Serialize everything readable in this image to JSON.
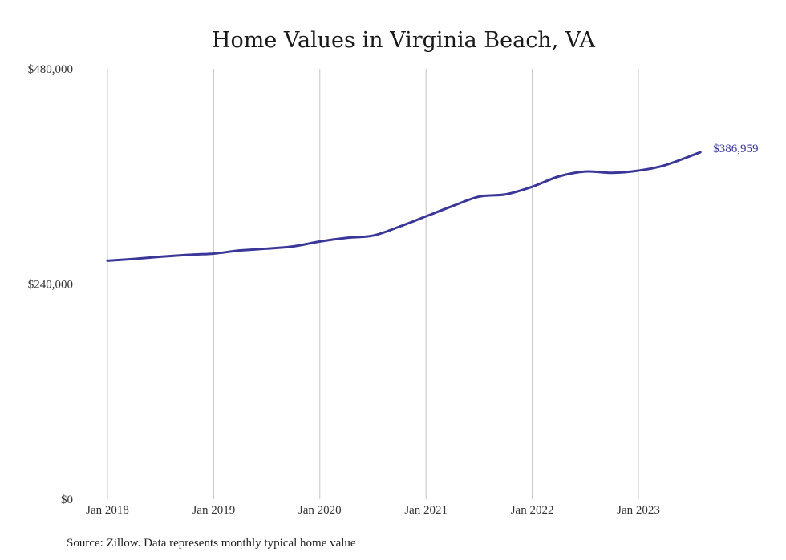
{
  "chart_data": {
    "type": "line",
    "title": "Home Values in Virginia Beach, VA",
    "xlabel": "",
    "ylabel": "",
    "x_tick_labels": [
      "Jan 2018",
      "Jan 2019",
      "Jan 2020",
      "Jan 2021",
      "Jan 2022",
      "Jan 2023"
    ],
    "y_tick_labels": [
      "$0",
      "$240,000",
      "$480,000"
    ],
    "y_ticks": [
      0,
      240000,
      480000
    ],
    "ylim": [
      0,
      480000
    ],
    "xlim": [
      "2018-01",
      "2023-08"
    ],
    "grid": "vertical",
    "series": [
      {
        "color": "#3b3799",
        "end_label": "$386,959",
        "points": [
          {
            "x": "2018-01",
            "y": 266000
          },
          {
            "x": "2018-04",
            "y": 268000
          },
          {
            "x": "2018-07",
            "y": 270500
          },
          {
            "x": "2018-10",
            "y": 272500
          },
          {
            "x": "2019-01",
            "y": 274000
          },
          {
            "x": "2019-04",
            "y": 277500
          },
          {
            "x": "2019-07",
            "y": 279500
          },
          {
            "x": "2019-10",
            "y": 282000
          },
          {
            "x": "2020-01",
            "y": 287500
          },
          {
            "x": "2020-04",
            "y": 291500
          },
          {
            "x": "2020-07",
            "y": 294000
          },
          {
            "x": "2020-10",
            "y": 304000
          },
          {
            "x": "2021-01",
            "y": 315500
          },
          {
            "x": "2021-04",
            "y": 327000
          },
          {
            "x": "2021-07",
            "y": 337500
          },
          {
            "x": "2021-10",
            "y": 340000
          },
          {
            "x": "2022-01",
            "y": 348500
          },
          {
            "x": "2022-04",
            "y": 360000
          },
          {
            "x": "2022-07",
            "y": 365500
          },
          {
            "x": "2022-10",
            "y": 364000
          },
          {
            "x": "2023-01",
            "y": 366500
          },
          {
            "x": "2023-04",
            "y": 372500
          },
          {
            "x": "2023-08",
            "y": 386959
          }
        ]
      }
    ]
  },
  "source": "Source: Zillow. Data represents monthly typical home value"
}
